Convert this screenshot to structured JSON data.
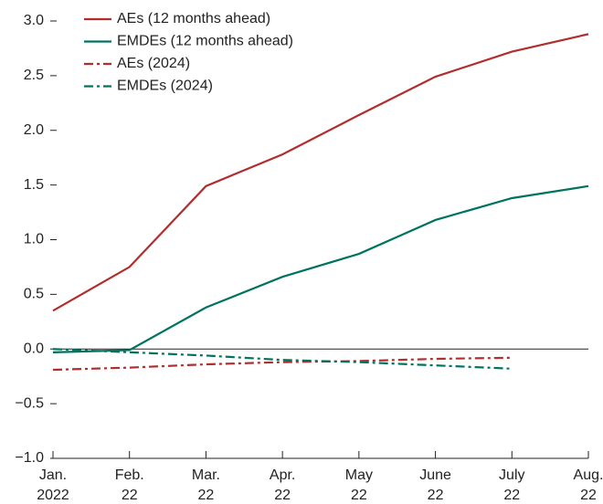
{
  "chart_data": {
    "type": "line",
    "categories": [
      [
        "Jan.",
        "2022"
      ],
      [
        "Feb.",
        "22"
      ],
      [
        "Mar.",
        "22"
      ],
      [
        "Apr.",
        "22"
      ],
      [
        "May",
        "22"
      ],
      [
        "June",
        "22"
      ],
      [
        "July",
        "22"
      ],
      [
        "Aug.",
        "22"
      ]
    ],
    "series": [
      {
        "name": "AEs (12 months ahead)",
        "color": "#b22d2d",
        "dash": "solid",
        "values": [
          0.35,
          0.75,
          1.49,
          1.78,
          2.14,
          2.49,
          2.72,
          2.88
        ]
      },
      {
        "name": "EMDEs (12 months ahead)",
        "color": "#00735f",
        "dash": "solid",
        "values": [
          -0.03,
          -0.01,
          0.38,
          0.66,
          0.87,
          1.18,
          1.38,
          1.49
        ]
      },
      {
        "name": "AEs (2024)",
        "color": "#b22d2d",
        "dash": "dashdot",
        "values": [
          -0.19,
          -0.17,
          -0.14,
          -0.12,
          -0.11,
          -0.09,
          -0.08,
          null
        ]
      },
      {
        "name": "EMDEs (2024)",
        "color": "#00735f",
        "dash": "dashdot",
        "values": [
          0.0,
          -0.03,
          -0.06,
          -0.1,
          -0.12,
          -0.15,
          -0.18,
          null
        ]
      }
    ],
    "ylim": [
      -1,
      3
    ],
    "yticks": [
      {
        "value": -1,
        "label": "−1.0"
      },
      {
        "value": -0.5,
        "label": "−0.5"
      },
      {
        "value": 0,
        "label": "0.0"
      },
      0.5,
      {
        "value": 1,
        "label": "1.0"
      },
      1.5,
      {
        "value": 2,
        "label": "2.0"
      },
      2.5,
      {
        "value": 3,
        "label": "3.0"
      }
    ],
    "legend": "upper-left"
  }
}
